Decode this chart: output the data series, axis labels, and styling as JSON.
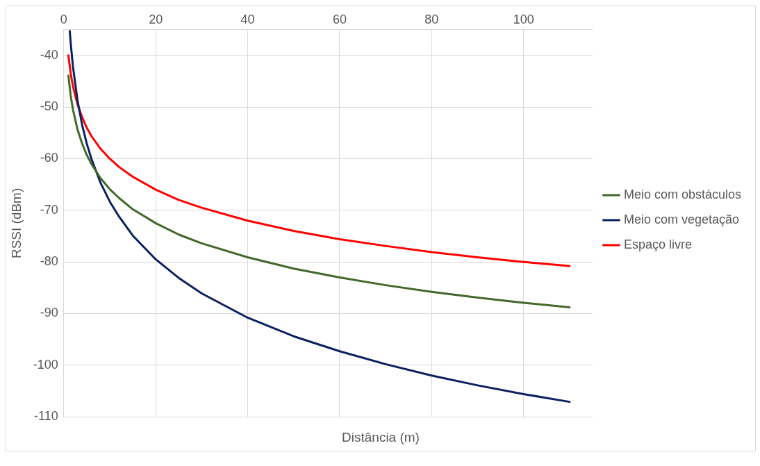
{
  "chart_data": {
    "type": "line",
    "xlabel": "Distância (m)",
    "ylabel": "RSSI (dBm)",
    "xlim": [
      0,
      115
    ],
    "xticks": [
      {
        "value": 0,
        "label": "0"
      },
      20,
      40,
      60,
      80,
      100
    ],
    "ylim": [
      -110,
      -35
    ],
    "yticks": [
      -110,
      -100,
      -90,
      -80,
      -70,
      -60,
      -50,
      -40
    ],
    "grid": true,
    "legend": "right",
    "marker": "none",
    "line_style": "solid",
    "series": [
      {
        "name": "Meio com obstáculos",
        "color": "#43682b",
        "x": [
          1,
          1.5,
          2,
          3,
          4,
          5,
          6,
          8,
          10,
          12,
          15,
          20,
          25,
          30,
          40,
          50,
          60,
          70,
          80,
          90,
          100,
          110
        ],
        "values": [
          -43.9,
          -47.8,
          -50.5,
          -54.4,
          -57.1,
          -59.3,
          -61.0,
          -63.8,
          -65.9,
          -67.6,
          -69.8,
          -72.5,
          -74.7,
          -76.4,
          -79.1,
          -81.3,
          -83.0,
          -84.5,
          -85.8,
          -86.9,
          -87.9,
          -88.8
        ]
      },
      {
        "name": "Meio com vegetação",
        "color": "#0b2061",
        "x": [
          1.3,
          1.5,
          2,
          3,
          4,
          5,
          6,
          8,
          10,
          12,
          15,
          20,
          25,
          30,
          40,
          50,
          60,
          70,
          80,
          90,
          100,
          110
        ],
        "values": [
          -35.3,
          -37.6,
          -42.2,
          -48.8,
          -53.5,
          -57.1,
          -60.0,
          -64.7,
          -68.3,
          -71.2,
          -74.9,
          -79.5,
          -83.1,
          -86.1,
          -90.8,
          -94.4,
          -97.3,
          -99.8,
          -102.0,
          -103.9,
          -105.6,
          -107.1
        ]
      },
      {
        "name": "Espaço livre",
        "color": "#ff0000",
        "x": [
          1,
          1.5,
          2,
          3,
          4,
          5,
          6,
          8,
          10,
          12,
          15,
          20,
          25,
          30,
          40,
          50,
          60,
          70,
          80,
          90,
          100,
          110
        ],
        "values": [
          -40,
          -43.5,
          -46.0,
          -49.5,
          -52.0,
          -54.0,
          -55.6,
          -58.1,
          -60,
          -61.6,
          -63.5,
          -66.0,
          -68.0,
          -69.5,
          -72.0,
          -74.0,
          -75.6,
          -76.9,
          -78.1,
          -79.1,
          -80,
          -80.8
        ]
      }
    ]
  }
}
